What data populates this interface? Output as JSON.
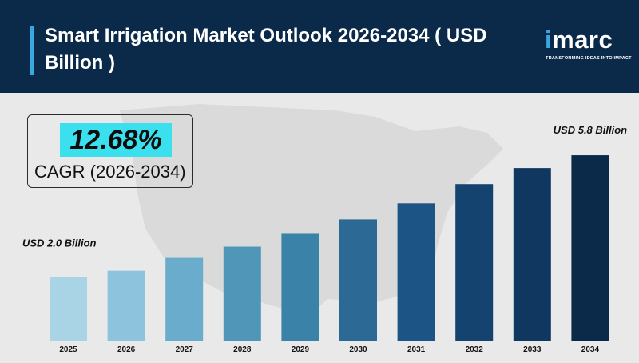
{
  "header": {
    "title": "Smart Irrigation Market Outlook 2026-2034 ( USD Billion )",
    "logo": {
      "brand_prefix": "i",
      "brand_rest": "marc",
      "tagline": "TRANSFORMING IDEAS INTO IMPACT"
    }
  },
  "cagr": {
    "value": "12.68%",
    "label": "CAGR (2026-2034)"
  },
  "colors": {
    "header_bg": "#0b2a4a",
    "accent": "#3aa8e0",
    "cagr_highlight": "#3be0ee",
    "panel_bg": "#e9e9e9",
    "map": "#dadada"
  },
  "chart_data": {
    "type": "bar",
    "title": "Smart Irrigation Market Outlook 2026-2034 ( USD Billion )",
    "xlabel": "",
    "ylabel": "",
    "categories": [
      "2025",
      "2026",
      "2027",
      "2028",
      "2029",
      "2030",
      "2031",
      "2032",
      "2033",
      "2034"
    ],
    "values": [
      2.0,
      2.2,
      2.6,
      2.95,
      3.35,
      3.8,
      4.3,
      4.9,
      5.4,
      5.8
    ],
    "ylim": [
      0,
      6.2
    ],
    "grid": false,
    "legend": "none",
    "bar_colors": [
      "#a8d4e6",
      "#8ec3de",
      "#6aaccb",
      "#4f96b8",
      "#3b82a8",
      "#2c6a95",
      "#1d5486",
      "#14436f",
      "#0f375f",
      "#0b2a4a"
    ],
    "annotations": [
      {
        "category": "2025",
        "text": "USD 2.0 Billion"
      },
      {
        "category": "2034",
        "text": "USD 5.8 Billion"
      }
    ]
  }
}
